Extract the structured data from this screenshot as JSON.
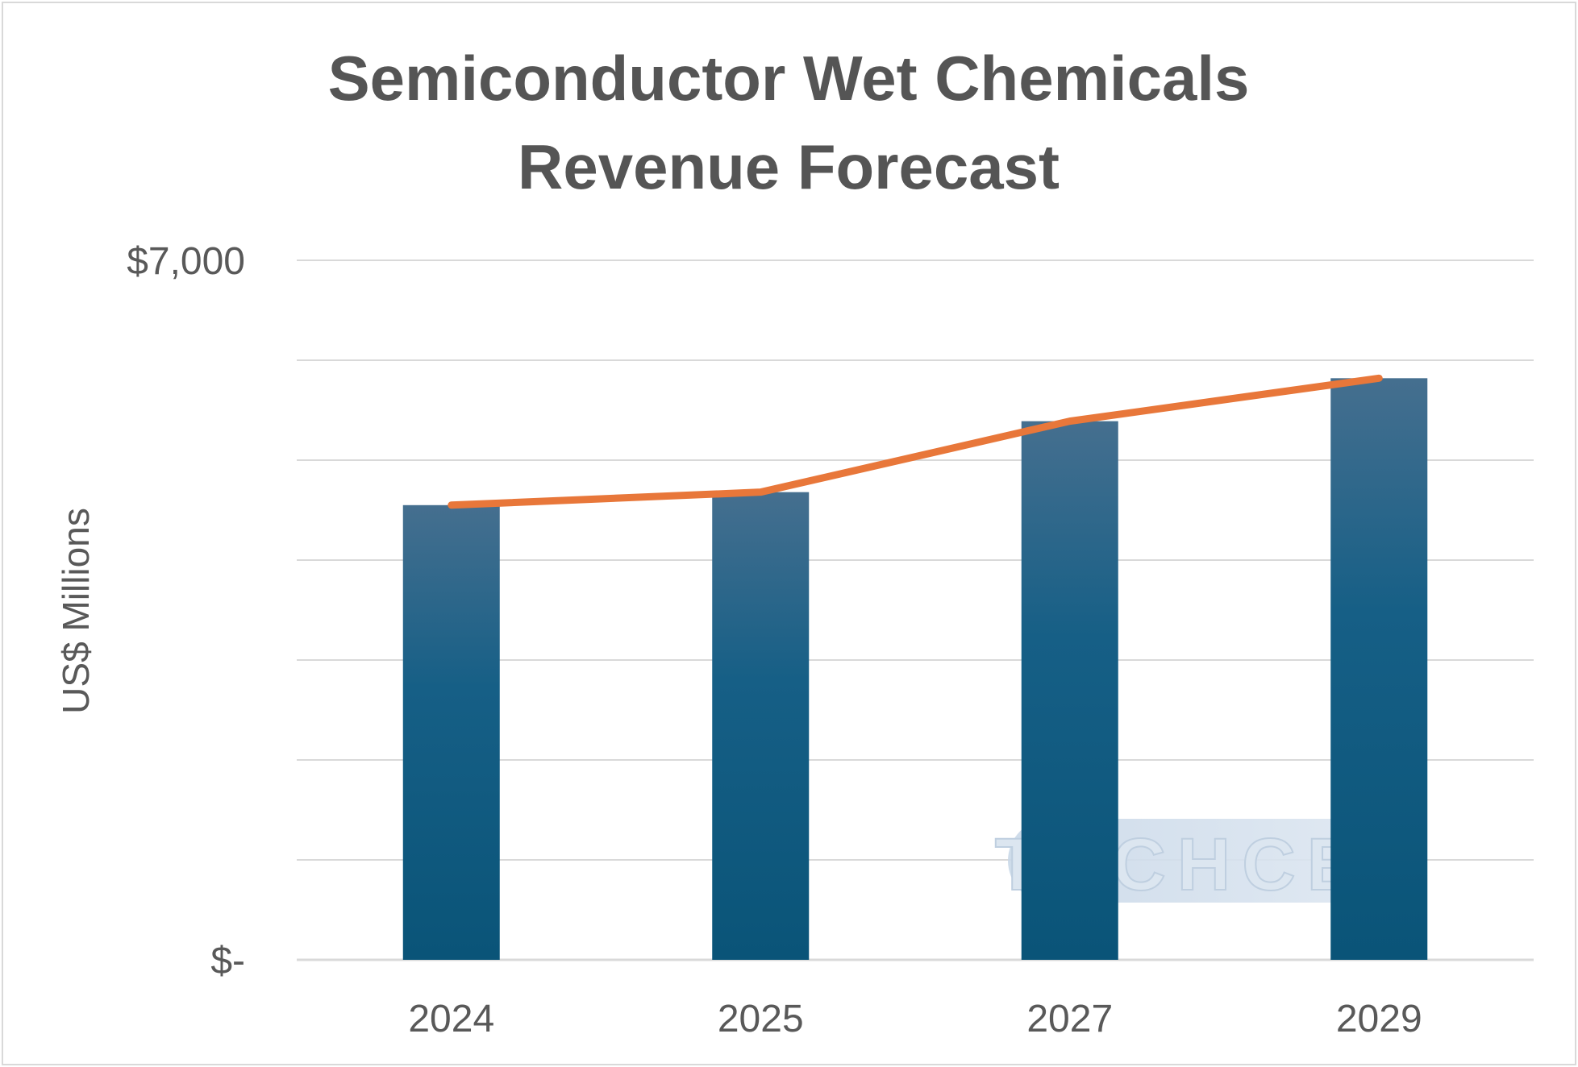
{
  "chart_data": {
    "type": "bar",
    "title_lines": [
      "Semiconductor Wet Chemicals",
      "Revenue Forecast"
    ],
    "xlabel": "",
    "ylabel": "US$ Millions",
    "categories": [
      "2024",
      "2025",
      "2027",
      "2029"
    ],
    "values": [
      4550,
      4680,
      5390,
      5820
    ],
    "trend_line": [
      4550,
      4680,
      5390,
      5820
    ],
    "ylim": [
      0,
      7000
    ],
    "y_gridlines": [
      0,
      1000,
      2000,
      3000,
      4000,
      5000,
      6000,
      7000
    ],
    "y_tick_labels": [
      {
        "value": 7000,
        "label": "$7,000"
      },
      {
        "value": 0,
        "label": "$-"
      }
    ],
    "grid": true,
    "legend": "none",
    "colors": {
      "bar_top": "#456f8f",
      "bar_bottom": "#0a5478",
      "line": "#e8773a",
      "grid": "#d9d9d9",
      "text": "#595959"
    },
    "watermark": "TECHCET"
  }
}
